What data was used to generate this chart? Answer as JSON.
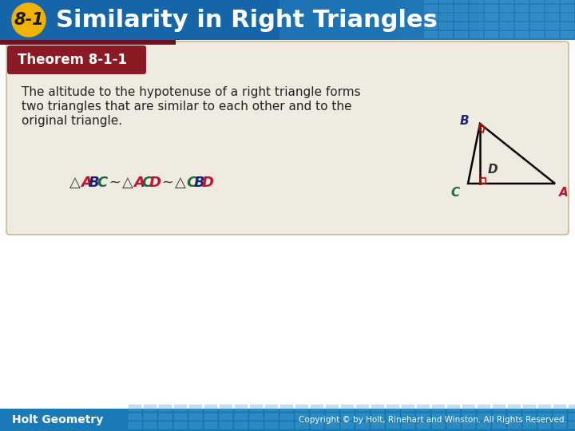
{
  "title": "Similarity in Right Triangles",
  "section_num": "8-1",
  "theorem_label": "Theorem 8-1-1",
  "theorem_text_line1": "The altitude to the hypotenuse of a right triangle forms",
  "theorem_text_line2": "two triangles that are similar to each other and to the",
  "theorem_text_line3": "original triangle.",
  "footer_left": "Holt Geometry",
  "footer_right": "Copyright © by Holt, Rinehart and Winston. All Rights Reserved.",
  "bg_color": "#ffffff",
  "header_bg_dark": "#1565a8",
  "header_bg_mid": "#1a7fc4",
  "header_bg_light": "#3ca0d8",
  "header_text_color": "#ffffff",
  "badge_color": "#f0b400",
  "badge_text_color": "#1a1a1a",
  "theorem_header_bg": "#8b1a24",
  "theorem_box_bg": "#f0ebe0",
  "theorem_box_border": "#c8b89a",
  "footer_bg_color": "#1a7ab5",
  "footer_text_color": "#ffffff",
  "sim_A_color": "#c8102e",
  "sim_B_color": "#1a237e",
  "sim_C_color": "#1a6b3a",
  "sim_D_color": "#c8102e",
  "triangle_line_color": "#000000",
  "right_angle_color": "#cc0000",
  "grid_color": "#4da8d8",
  "grid_alpha": 0.35
}
